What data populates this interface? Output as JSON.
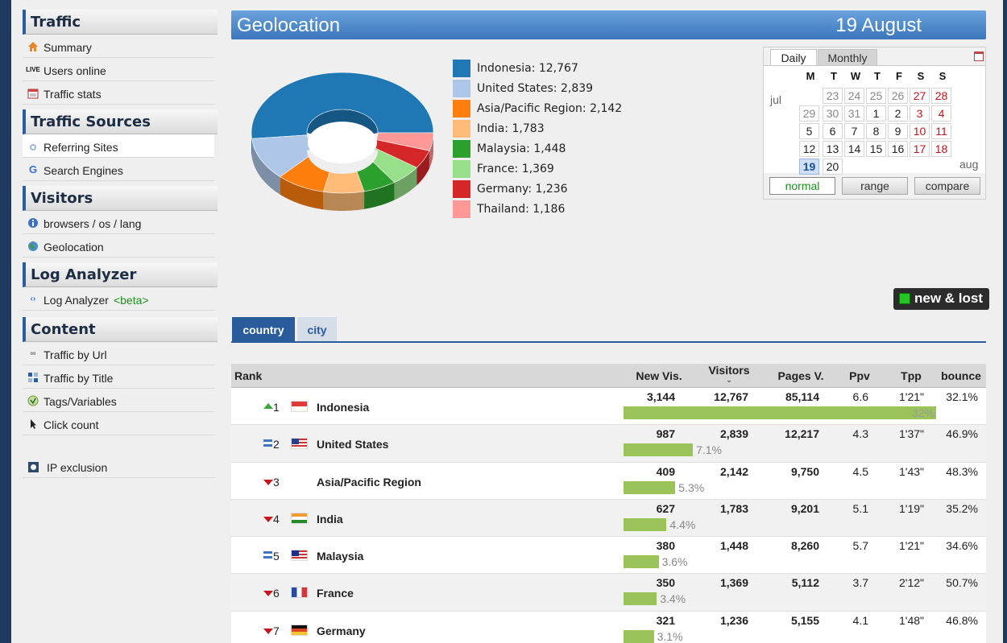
{
  "sidebar": {
    "sections": [
      {
        "title": "Traffic",
        "items": [
          {
            "label": "Summary",
            "icon": "home-icon"
          },
          {
            "label": "Users online",
            "icon": "live-icon"
          },
          {
            "label": "Traffic stats",
            "icon": "calendar-icon"
          }
        ]
      },
      {
        "title": "Traffic Sources",
        "items": [
          {
            "label": "Referring Sites",
            "icon": "referrer-icon"
          },
          {
            "label": "Search Engines",
            "icon": "google-icon"
          }
        ]
      },
      {
        "title": "Visitors",
        "items": [
          {
            "label": "browsers / os / lang",
            "icon": "info-icon"
          },
          {
            "label": "Geolocation",
            "icon": "globe-icon"
          }
        ]
      },
      {
        "title": "Log Analyzer",
        "items": [
          {
            "label": "Log Analyzer",
            "beta": "<beta>",
            "icon": "log-icon"
          }
        ]
      },
      {
        "title": "Content",
        "items": [
          {
            "label": "Traffic by Url",
            "icon": "link-icon"
          },
          {
            "label": "Traffic by Title",
            "icon": "title-icon"
          },
          {
            "label": "Tags/Variables",
            "icon": "tag-icon"
          },
          {
            "label": "Click count",
            "icon": "cursor-icon"
          }
        ]
      }
    ],
    "ip_exclusion": "IP exclusion"
  },
  "header": {
    "title": "Geolocation",
    "date": "19 August"
  },
  "legend": [
    {
      "label": "Indonesia: 12,767",
      "color": "#1f77b4"
    },
    {
      "label": "United States: 2,839",
      "color": "#aec7e8"
    },
    {
      "label": "Asia/Pacific Region: 2,142",
      "color": "#ff7f0e"
    },
    {
      "label": "India: 1,783",
      "color": "#ffbb78"
    },
    {
      "label": "Malaysia: 1,448",
      "color": "#2ca02c"
    },
    {
      "label": "France: 1,369",
      "color": "#98df8a"
    },
    {
      "label": "Germany: 1,236",
      "color": "#d62728"
    },
    {
      "label": "Thailand: 1,186",
      "color": "#ff9896"
    }
  ],
  "chart_data": {
    "type": "pie",
    "labels": [
      "Indonesia",
      "United States",
      "Asia/Pacific Region",
      "India",
      "Malaysia",
      "France",
      "Germany",
      "Thailand"
    ],
    "values": [
      12767,
      2839,
      2142,
      1783,
      1448,
      1369,
      1236,
      1186
    ],
    "colors": [
      "#1f77b4",
      "#aec7e8",
      "#ff7f0e",
      "#ffbb78",
      "#2ca02c",
      "#98df8a",
      "#d62728",
      "#ff9896"
    ],
    "style": "3d-donut",
    "legend": "right"
  },
  "calendar": {
    "tabs": {
      "daily": "Daily",
      "monthly": "Monthly"
    },
    "dow": [
      "M",
      "T",
      "W",
      "T",
      "F",
      "S",
      "S"
    ],
    "month_prev": "jul",
    "month_next": "aug",
    "weeks": [
      [
        "",
        "23",
        "24",
        "25",
        "26",
        "27",
        "28"
      ],
      [
        "29",
        "30",
        "31",
        "1",
        "2",
        "3",
        "4"
      ],
      [
        "5",
        "6",
        "7",
        "8",
        "9",
        "10",
        "11"
      ],
      [
        "12",
        "13",
        "14",
        "15",
        "16",
        "17",
        "18"
      ],
      [
        "19",
        "20",
        "",
        "",
        "",
        "",
        ""
      ]
    ],
    "selected": "19",
    "buttons": {
      "normal": "normal",
      "range": "range",
      "compare": "compare"
    }
  },
  "new_lost": "new & lost",
  "tabs": {
    "country": "country",
    "city": "city"
  },
  "table": {
    "headers": {
      "rank": "Rank",
      "new_vis": "New Vis.",
      "visitors": "Visitors",
      "pages_v": "Pages V.",
      "ppv": "Ppv",
      "tpp": "Tpp",
      "bounce": "bounce"
    },
    "rows": [
      {
        "rank": "1",
        "trend": "up",
        "country": "Indonesia",
        "flag": "id",
        "new_vis": "3,144",
        "visitors": "12,767",
        "pages": "85,114",
        "ppv": "6.6",
        "tpp": "1'21\"",
        "bounce": "32.1%",
        "share": "32%",
        "share_value": 32
      },
      {
        "rank": "2",
        "trend": "same",
        "country": "United States",
        "flag": "us",
        "new_vis": "987",
        "visitors": "2,839",
        "pages": "12,217",
        "ppv": "4.3",
        "tpp": "1'37\"",
        "bounce": "46.9%",
        "share": "7.1%",
        "share_value": 7.1
      },
      {
        "rank": "3",
        "trend": "down",
        "country": "Asia/Pacific Region",
        "flag": "none",
        "new_vis": "409",
        "visitors": "2,142",
        "pages": "9,750",
        "ppv": "4.5",
        "tpp": "1'43\"",
        "bounce": "48.3%",
        "share": "5.3%",
        "share_value": 5.3
      },
      {
        "rank": "4",
        "trend": "down",
        "country": "India",
        "flag": "in",
        "new_vis": "627",
        "visitors": "1,783",
        "pages": "9,201",
        "ppv": "5.1",
        "tpp": "1'19\"",
        "bounce": "35.2%",
        "share": "4.4%",
        "share_value": 4.4
      },
      {
        "rank": "5",
        "trend": "same",
        "country": "Malaysia",
        "flag": "my",
        "new_vis": "380",
        "visitors": "1,448",
        "pages": "8,260",
        "ppv": "5.7",
        "tpp": "1'21\"",
        "bounce": "34.6%",
        "share": "3.6%",
        "share_value": 3.6
      },
      {
        "rank": "6",
        "trend": "down",
        "country": "France",
        "flag": "fr",
        "new_vis": "350",
        "visitors": "1,369",
        "pages": "5,112",
        "ppv": "3.7",
        "tpp": "2'12\"",
        "bounce": "50.7%",
        "share": "3.4%",
        "share_value": 3.4
      },
      {
        "rank": "7",
        "trend": "down",
        "country": "Germany",
        "flag": "de",
        "new_vis": "321",
        "visitors": "1,236",
        "pages": "5,155",
        "ppv": "4.1",
        "tpp": "1'48\"",
        "bounce": "46.8%",
        "share": "3.1%",
        "share_value": 3.1
      }
    ]
  }
}
